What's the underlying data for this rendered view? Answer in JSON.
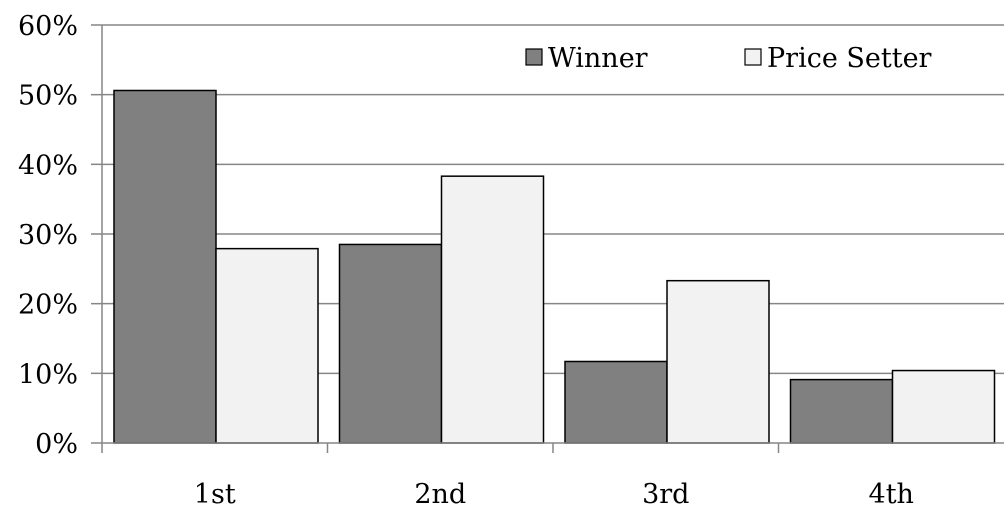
{
  "chart_data": {
    "type": "bar",
    "categories": [
      "1st",
      "2nd",
      "3rd",
      "4th"
    ],
    "series": [
      {
        "name": "Winner",
        "values": [
          50.6,
          28.5,
          11.7,
          9.1
        ]
      },
      {
        "name": "Price Setter",
        "values": [
          27.9,
          38.3,
          23.3,
          10.4
        ]
      }
    ],
    "ylim": [
      0,
      60
    ],
    "yticks": [
      0,
      10,
      20,
      30,
      40,
      50,
      60
    ],
    "ytick_labels": [
      "0%",
      "10%",
      "20%",
      "30%",
      "40%",
      "50%",
      "60%"
    ],
    "grid": true,
    "legend_position": "top-right",
    "colors": {
      "Winner": "#808080",
      "Price Setter": "#f2f2f2",
      "gridline": "#868686"
    }
  }
}
